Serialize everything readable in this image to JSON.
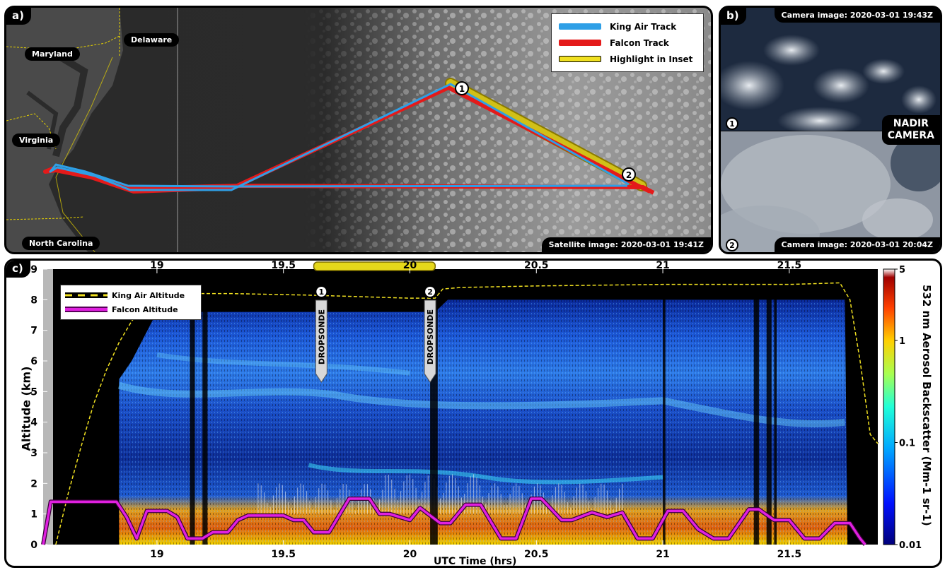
{
  "panel_a": {
    "label": "a)",
    "states": [
      "Maryland",
      "Delaware",
      "Virginia",
      "North Carolina"
    ],
    "legend": [
      {
        "label": "King Air Track",
        "color": "#2e9fe6"
      },
      {
        "label": "Falcon Track",
        "color": "#e41a1a"
      },
      {
        "label": "Highlight in Inset",
        "color": "#f0e020"
      }
    ],
    "markers": [
      "1",
      "2"
    ],
    "caption": "Satellite image: 2020-03-01 19:41Z"
  },
  "panel_b": {
    "label": "b)",
    "top_caption": "Camera image: 2020-03-01 19:43Z",
    "bottom_caption": "Camera image: 2020-03-01 20:04Z",
    "center_label": "NADIR\nCAMERA",
    "markers": [
      "1",
      "2"
    ]
  },
  "panel_c": {
    "label": "c)",
    "legend": [
      {
        "label": "King Air Altitude",
        "color": "#f0e020"
      },
      {
        "label": "Falcon Altitude",
        "color": "#e020e0"
      }
    ],
    "dropsondes": [
      {
        "marker": "1",
        "label": "DROPSONDE",
        "time": 19.65
      },
      {
        "marker": "2",
        "label": "DROPSONDE",
        "time": 20.08
      }
    ],
    "colorbar": {
      "label": "532 nm Aerosol Backscatter (Mm-1 sr-1)",
      "ticks": [
        "5",
        "1",
        "0.1",
        "0.01"
      ],
      "scale": "log"
    }
  },
  "chart_data": {
    "type": "line",
    "xlabel": "UTC Time (hrs)",
    "ylabel": "Altitude (km)",
    "xlim": [
      18.55,
      21.85
    ],
    "ylim": [
      0,
      9
    ],
    "xticks": [
      "19",
      "19.5",
      "20",
      "20.5",
      "21",
      "21.5"
    ],
    "xtick_values": [
      19,
      19.5,
      20,
      20.5,
      21,
      21.5
    ],
    "yticks": [
      "0",
      "1",
      "2",
      "3",
      "4",
      "5",
      "6",
      "7",
      "8",
      "9"
    ],
    "highlight_range": [
      19.62,
      20.1
    ],
    "series": [
      {
        "name": "King Air Altitude",
        "x": [
          18.6,
          18.65,
          18.7,
          18.75,
          18.8,
          18.85,
          18.9,
          18.95,
          19.0,
          19.1,
          19.3,
          19.6,
          20.0,
          20.1,
          20.13,
          20.2,
          20.5,
          21.0,
          21.5,
          21.7,
          21.74,
          21.78,
          21.82,
          21.85
        ],
        "y": [
          0.0,
          1.7,
          3.2,
          4.6,
          5.7,
          6.6,
          7.3,
          7.8,
          8.1,
          8.2,
          8.2,
          8.15,
          8.05,
          8.05,
          8.35,
          8.4,
          8.45,
          8.5,
          8.5,
          8.55,
          8.0,
          6.0,
          3.6,
          3.3
        ]
      },
      {
        "name": "Falcon Altitude",
        "x": [
          18.55,
          18.58,
          18.84,
          18.88,
          18.92,
          18.96,
          19.04,
          19.08,
          19.12,
          19.18,
          19.22,
          19.28,
          19.32,
          19.36,
          19.5,
          19.54,
          19.58,
          19.62,
          19.68,
          19.76,
          19.84,
          19.88,
          19.92,
          20.0,
          20.04,
          20.12,
          20.16,
          20.22,
          20.28,
          20.36,
          20.42,
          20.48,
          20.52,
          20.6,
          20.64,
          20.72,
          20.78,
          20.84,
          20.9,
          20.96,
          21.02,
          21.08,
          21.14,
          21.2,
          21.26,
          21.34,
          21.38,
          21.44,
          21.5,
          21.56,
          21.62,
          21.68,
          21.74,
          21.78,
          21.8
        ],
        "y": [
          0.0,
          1.4,
          1.4,
          0.9,
          0.2,
          1.1,
          1.1,
          0.9,
          0.2,
          0.2,
          0.4,
          0.4,
          0.8,
          0.95,
          0.95,
          0.8,
          0.8,
          0.4,
          0.4,
          1.5,
          1.5,
          1.0,
          1.0,
          0.8,
          1.2,
          0.7,
          0.7,
          1.3,
          1.3,
          0.2,
          0.2,
          1.5,
          1.5,
          0.8,
          0.8,
          1.05,
          0.9,
          1.05,
          0.2,
          0.2,
          1.1,
          1.1,
          0.5,
          0.2,
          0.2,
          1.15,
          1.15,
          0.8,
          0.8,
          0.2,
          0.2,
          0.7,
          0.7,
          0.2,
          0.0
        ]
      }
    ]
  }
}
